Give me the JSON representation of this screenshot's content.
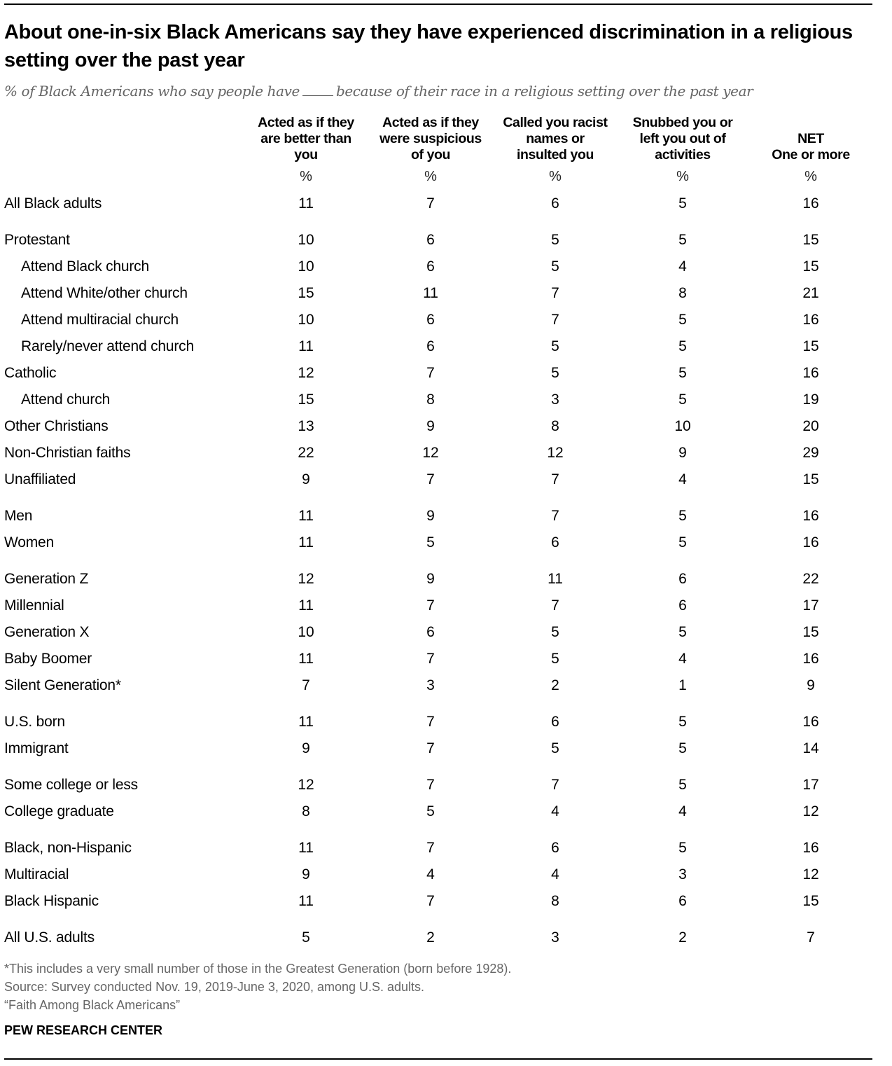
{
  "title": "About one-in-six Black Americans say they have experienced discrimination in a religious setting over the past year",
  "subtitle_before": "% of Black Americans who say people have",
  "subtitle_after": "because of their race in a religious setting over the past year",
  "chart_data": {
    "type": "table",
    "unit_label": "%",
    "columns": [
      "Acted as if they\nare better than\nyou",
      "Acted as if they\nwere suspicious\nof you",
      "Called you racist\nnames or\ninsulted you",
      "Snubbed you or\nleft you out of\nactivities",
      "NET\nOne or more"
    ],
    "groups": [
      {
        "rows": [
          {
            "label": "All Black adults",
            "values": [
              11,
              7,
              6,
              5,
              16
            ]
          }
        ]
      },
      {
        "rows": [
          {
            "label": "Protestant",
            "values": [
              10,
              6,
              5,
              5,
              15
            ]
          },
          {
            "label": "Attend Black church",
            "indent": true,
            "values": [
              10,
              6,
              5,
              4,
              15
            ]
          },
          {
            "label": "Attend White/other church",
            "indent": true,
            "values": [
              15,
              11,
              7,
              8,
              21
            ]
          },
          {
            "label": "Attend multiracial church",
            "indent": true,
            "values": [
              10,
              6,
              7,
              5,
              16
            ]
          },
          {
            "label": "Rarely/never attend church",
            "indent": true,
            "values": [
              11,
              6,
              5,
              5,
              15
            ]
          },
          {
            "label": "Catholic",
            "values": [
              12,
              7,
              5,
              5,
              16
            ]
          },
          {
            "label": "Attend church",
            "indent": true,
            "values": [
              15,
              8,
              3,
              5,
              19
            ]
          },
          {
            "label": "Other Christians",
            "values": [
              13,
              9,
              8,
              10,
              20
            ]
          },
          {
            "label": "Non-Christian faiths",
            "values": [
              22,
              12,
              12,
              9,
              29
            ]
          },
          {
            "label": "Unaffiliated",
            "values": [
              9,
              7,
              7,
              4,
              15
            ]
          }
        ]
      },
      {
        "rows": [
          {
            "label": "Men",
            "values": [
              11,
              9,
              7,
              5,
              16
            ]
          },
          {
            "label": "Women",
            "values": [
              11,
              5,
              6,
              5,
              16
            ]
          }
        ]
      },
      {
        "rows": [
          {
            "label": "Generation Z",
            "values": [
              12,
              9,
              11,
              6,
              22
            ]
          },
          {
            "label": "Millennial",
            "values": [
              11,
              7,
              7,
              6,
              17
            ]
          },
          {
            "label": "Generation X",
            "values": [
              10,
              6,
              5,
              5,
              15
            ]
          },
          {
            "label": "Baby Boomer",
            "values": [
              11,
              7,
              5,
              4,
              16
            ]
          },
          {
            "label": "Silent Generation*",
            "values": [
              7,
              3,
              2,
              1,
              9
            ]
          }
        ]
      },
      {
        "rows": [
          {
            "label": "U.S. born",
            "values": [
              11,
              7,
              6,
              5,
              16
            ]
          },
          {
            "label": "Immigrant",
            "values": [
              9,
              7,
              5,
              5,
              14
            ]
          }
        ]
      },
      {
        "rows": [
          {
            "label": "Some college or less",
            "values": [
              12,
              7,
              7,
              5,
              17
            ]
          },
          {
            "label": "College graduate",
            "values": [
              8,
              5,
              4,
              4,
              12
            ]
          }
        ]
      },
      {
        "rows": [
          {
            "label": "Black, non-Hispanic",
            "values": [
              11,
              7,
              6,
              5,
              16
            ]
          },
          {
            "label": "Multiracial",
            "values": [
              9,
              4,
              4,
              3,
              12
            ]
          },
          {
            "label": "Black Hispanic",
            "values": [
              11,
              7,
              8,
              6,
              15
            ]
          }
        ]
      },
      {
        "rows": [
          {
            "label": "All U.S. adults",
            "values": [
              5,
              2,
              3,
              2,
              7
            ]
          }
        ]
      }
    ]
  },
  "notes": {
    "footnote": "*This includes a very small number of those in the Greatest Generation (born before 1928).",
    "source": "Source: Survey conducted Nov. 19, 2019-June 3, 2020, among U.S. adults.",
    "report": "“Faith Among Black Americans”"
  },
  "brand": "PEW RESEARCH CENTER",
  "colors": {
    "text": "#000000",
    "subtitle": "#666666",
    "notes": "#666666"
  }
}
